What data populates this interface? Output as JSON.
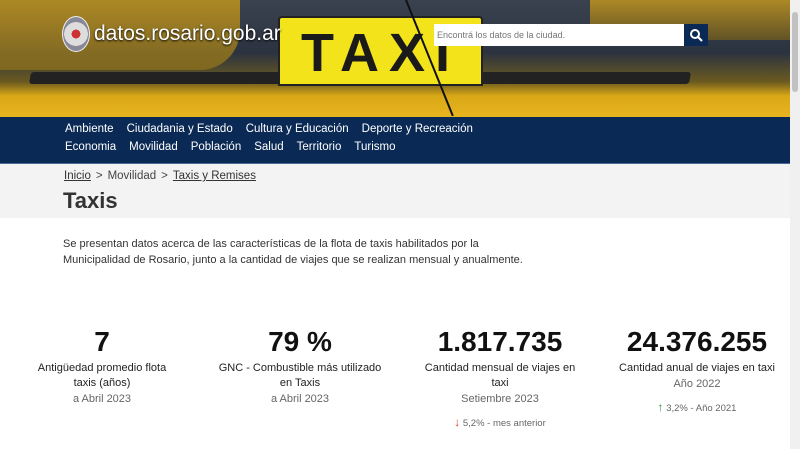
{
  "header": {
    "site_name": "datos.rosario.gob.ar",
    "search_placeholder": "Encontrá los datos de la ciudad.",
    "hero_sign": "TAXI"
  },
  "nav": {
    "row1": [
      "Ambiente",
      "Ciudadania y Estado",
      "Cultura y Educación",
      "Deporte y Recreación"
    ],
    "row2": [
      "Economia",
      "Movilidad",
      "Población",
      "Salud",
      "Territorio",
      "Turismo"
    ]
  },
  "breadcrumb": [
    "Inicio",
    "Movilidad",
    "Taxis y Remises"
  ],
  "page_title": "Taxis",
  "description": "Se presentan datos acerca de las características de la flota de taxis habilitados por la Municipalidad de Rosario, junto a la cantidad de viajes que se realizan mensual y anualmente.",
  "stats": [
    {
      "value": "7",
      "label": "Antigüedad promedio flota taxis (años)",
      "date": "a Abril 2023"
    },
    {
      "value": "79 %",
      "label": "GNC - Combustible más utilizado en Taxis",
      "date": "a Abril 2023"
    },
    {
      "value": "1.817.735",
      "label": "Cantidad mensual de viajes en taxi",
      "date": "Setiembre 2023",
      "change": "5,2% - mes anterior",
      "trend": "down"
    },
    {
      "value": "24.376.255",
      "label": "Cantidad anual de viajes en taxi",
      "date": "Año 2022",
      "change": "3,2% - Año 2021",
      "trend": "up"
    }
  ],
  "colors": {
    "nav_bg": "#0a2a55",
    "up": "#2e8b3e",
    "down": "#dd3333"
  }
}
